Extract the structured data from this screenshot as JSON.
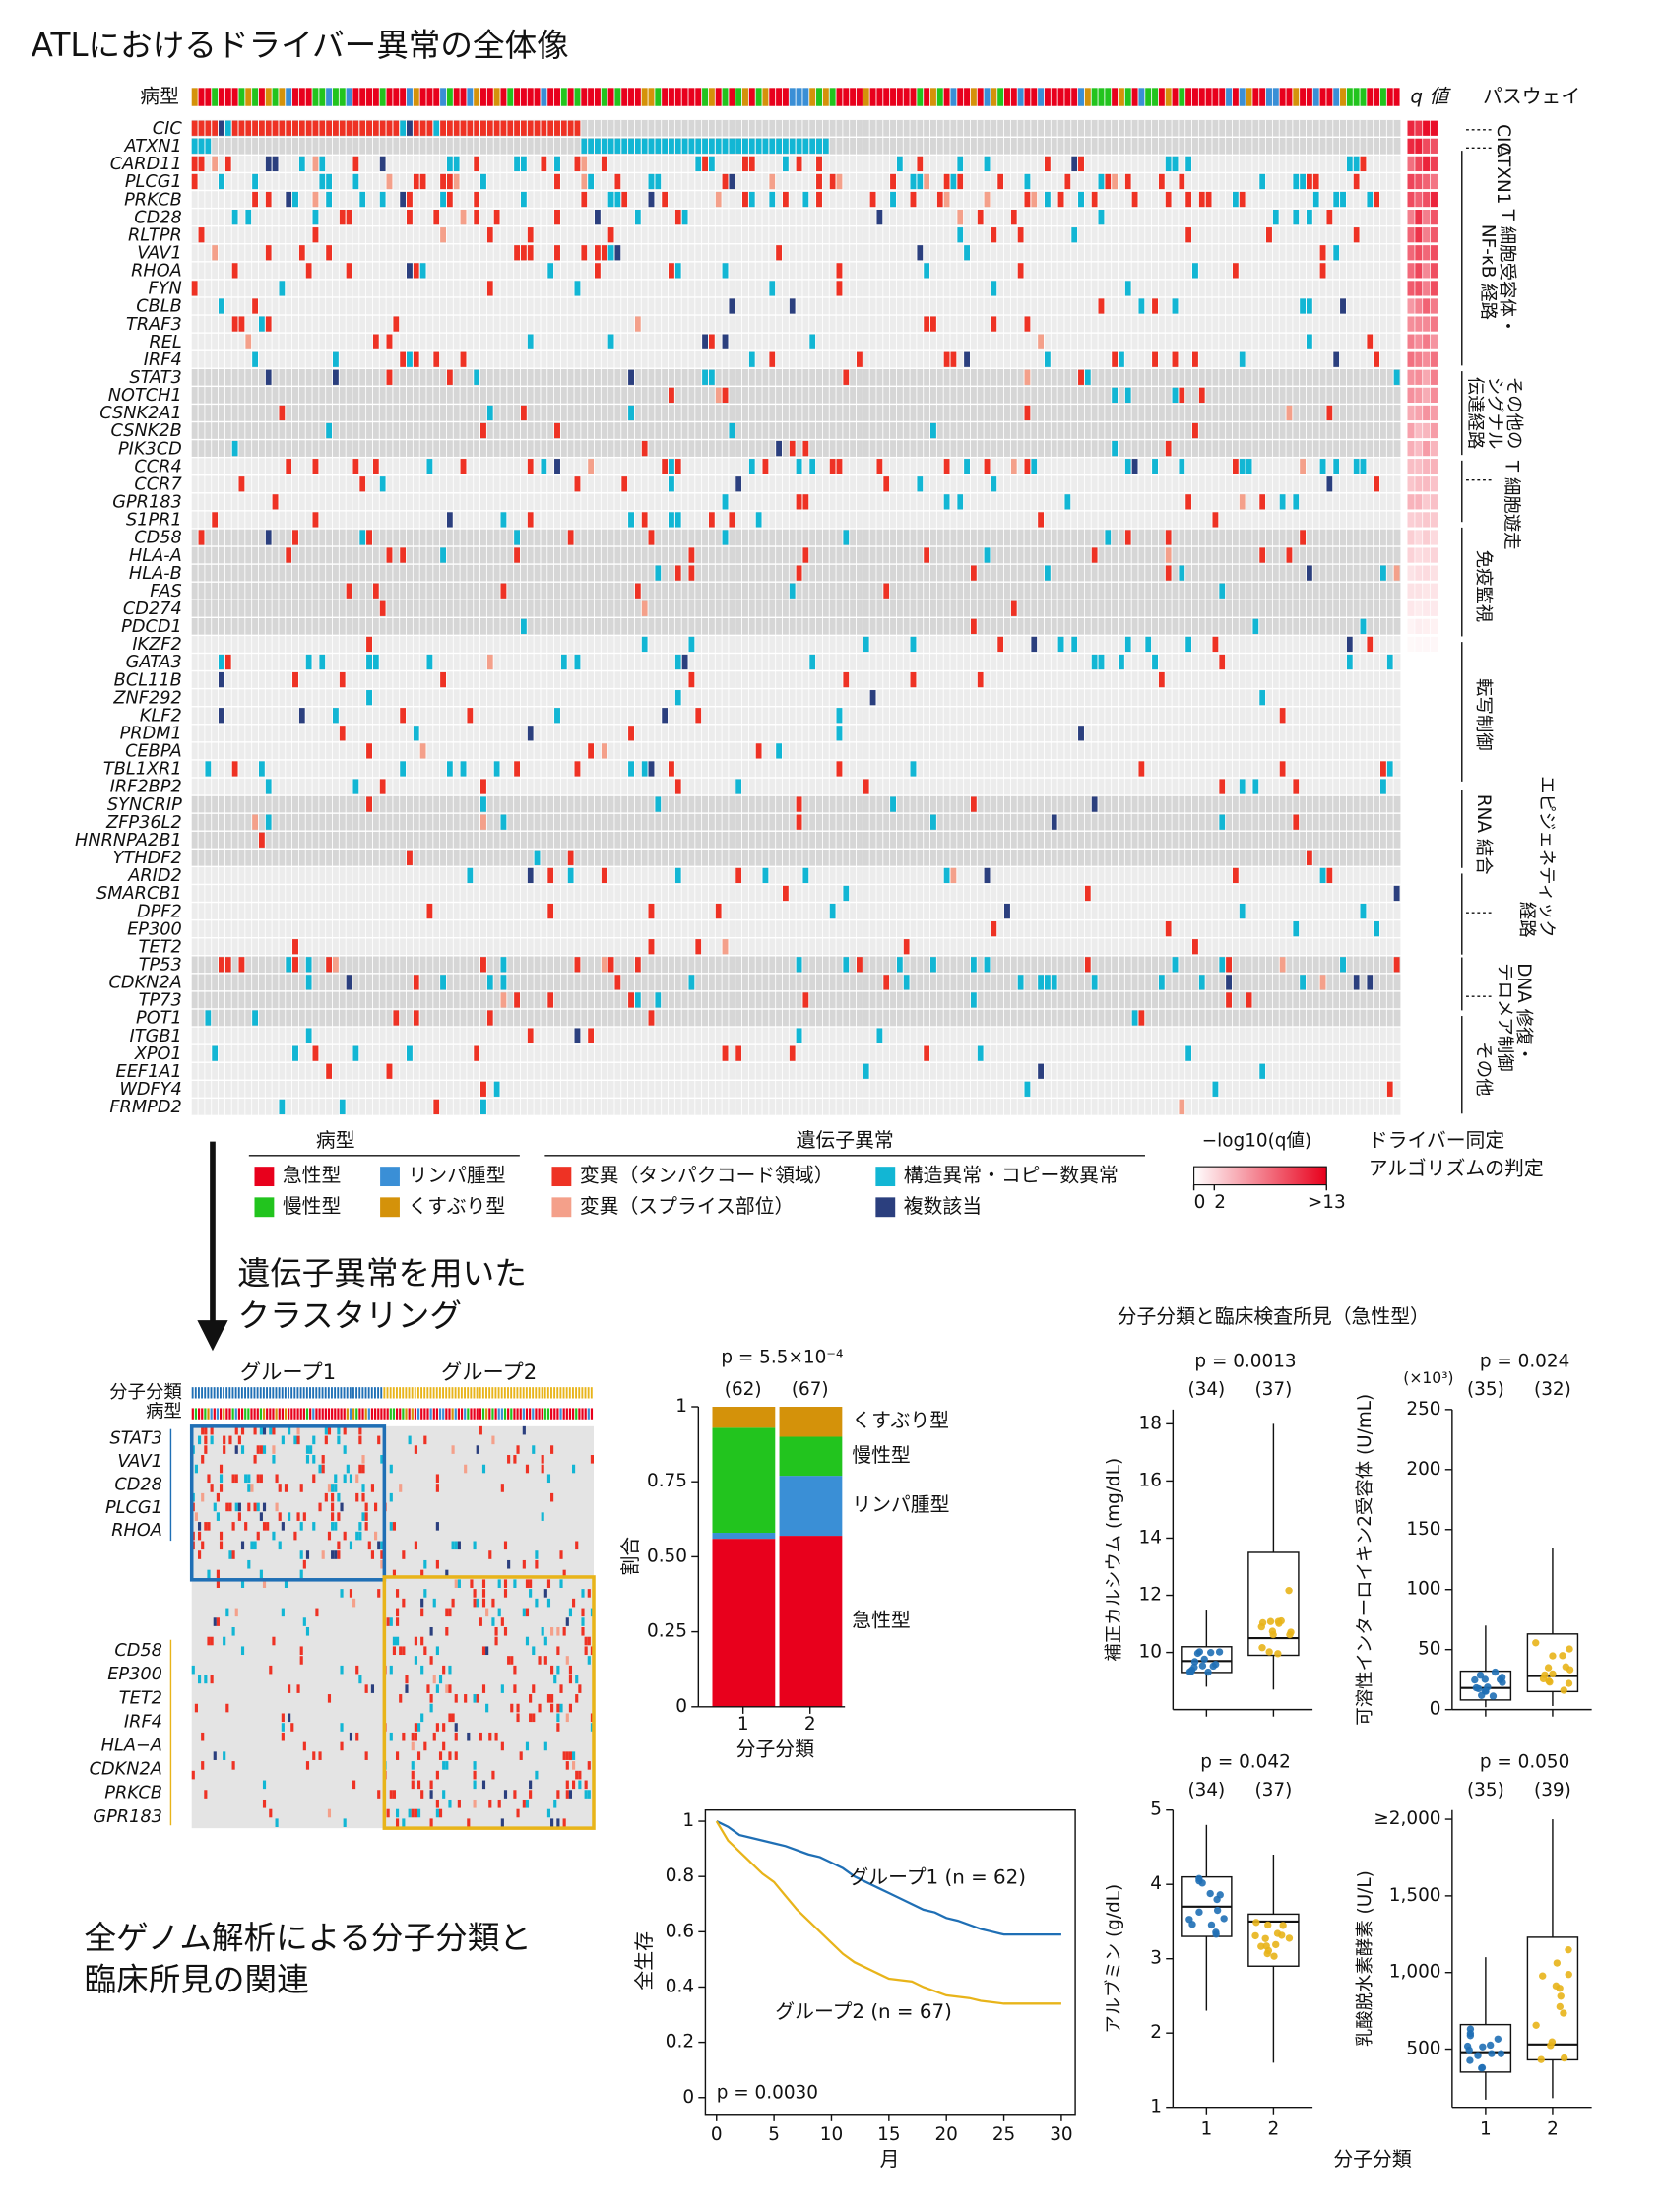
{
  "title": "ATLにおけるドライバー異常の全体像",
  "oncoprint": {
    "subtype_label": "病型",
    "q_label": "q 値",
    "pathway_label": "パスウェイ",
    "genes": [
      {
        "name": "CIC",
        "color": "#d4202a"
      },
      {
        "name": "ATXN1",
        "color": "#111111"
      },
      {
        "name": "CARD11",
        "color": "#111111"
      },
      {
        "name": "PLCG1",
        "color": "#111111"
      },
      {
        "name": "PRKCB",
        "color": "#111111"
      },
      {
        "name": "CD28",
        "color": "#111111"
      },
      {
        "name": "RLTPR",
        "color": "#111111"
      },
      {
        "name": "VAV1",
        "color": "#111111"
      },
      {
        "name": "RHOA",
        "color": "#111111"
      },
      {
        "name": "FYN",
        "color": "#111111"
      },
      {
        "name": "CBLB",
        "color": "#111111"
      },
      {
        "name": "TRAF3",
        "color": "#111111"
      },
      {
        "name": "REL",
        "color": "#d4202a"
      },
      {
        "name": "IRF4",
        "color": "#111111"
      },
      {
        "name": "STAT3",
        "color": "#111111"
      },
      {
        "name": "NOTCH1",
        "color": "#111111"
      },
      {
        "name": "CSNK2A1",
        "color": "#111111"
      },
      {
        "name": "CSNK2B",
        "color": "#111111"
      },
      {
        "name": "PIK3CD",
        "color": "#111111"
      },
      {
        "name": "CCR4",
        "color": "#111111"
      },
      {
        "name": "CCR7",
        "color": "#111111"
      },
      {
        "name": "GPR183",
        "color": "#111111"
      },
      {
        "name": "S1PR1",
        "color": "#111111"
      },
      {
        "name": "CD58",
        "color": "#111111"
      },
      {
        "name": "HLA-A",
        "color": "#111111"
      },
      {
        "name": "HLA-B",
        "color": "#111111"
      },
      {
        "name": "FAS",
        "color": "#111111"
      },
      {
        "name": "CD274",
        "color": "#111111"
      },
      {
        "name": "PDCD1",
        "color": "#111111"
      },
      {
        "name": "IKZF2",
        "color": "#111111"
      },
      {
        "name": "GATA3",
        "color": "#111111"
      },
      {
        "name": "BCL11B",
        "color": "#111111"
      },
      {
        "name": "ZNF292",
        "color": "#d4202a"
      },
      {
        "name": "KLF2",
        "color": "#d4202a"
      },
      {
        "name": "PRDM1",
        "color": "#111111"
      },
      {
        "name": "CEBPA",
        "color": "#111111"
      },
      {
        "name": "TBL1XR1",
        "color": "#111111"
      },
      {
        "name": "IRF2BP2",
        "color": "#111111"
      },
      {
        "name": "SYNCRIP",
        "color": "#111111"
      },
      {
        "name": "ZFP36L2",
        "color": "#111111"
      },
      {
        "name": "HNRNPA2B1",
        "color": "#111111"
      },
      {
        "name": "YTHDF2",
        "color": "#111111"
      },
      {
        "name": "ARID2",
        "color": "#111111"
      },
      {
        "name": "SMARCB1",
        "color": "#d4202a"
      },
      {
        "name": "DPF2",
        "color": "#d4202a"
      },
      {
        "name": "EP300",
        "color": "#111111"
      },
      {
        "name": "TET2",
        "color": "#111111"
      },
      {
        "name": "TP53",
        "color": "#111111"
      },
      {
        "name": "CDKN2A",
        "color": "#111111"
      },
      {
        "name": "TP73",
        "color": "#111111"
      },
      {
        "name": "POT1",
        "color": "#111111"
      },
      {
        "name": "ITGB1",
        "color": "#d4202a"
      },
      {
        "name": "XPO1",
        "color": "#d4202a"
      },
      {
        "name": "EEF1A1",
        "color": "#d4202a"
      },
      {
        "name": "WDFY4",
        "color": "#d4202a"
      },
      {
        "name": "FRMPD2",
        "color": "#d4202a"
      }
    ],
    "pathways": [
      [
        "CIC"
      ],
      [
        "ATXN1"
      ],
      [
        "T 細胞受容体・",
        "NF-κB 経路"
      ],
      [
        "その他の",
        "シグナル",
        "伝達経路"
      ],
      [
        "T 細胞遊走"
      ],
      [
        "免疫監視"
      ],
      [
        "転写制御"
      ],
      [
        "エピジェネティック",
        "経路"
      ],
      [
        "RNA 結合"
      ],
      [
        "DNA 修復・",
        "テロメア制御"
      ],
      [
        "その他"
      ]
    ]
  },
  "legend": {
    "subtype_title": "病型",
    "subtypes": [
      {
        "name": "急性型",
        "color": "#e8001c"
      },
      {
        "name": "リンパ腫型",
        "color": "#3a8fd6"
      },
      {
        "name": "慢性型",
        "color": "#22c41e"
      },
      {
        "name": "くすぶり型",
        "color": "#d4920a"
      }
    ],
    "alteration_title": "遺伝子異常",
    "alterations": [
      {
        "name": "変異（タンパクコード領域）",
        "color": "#ee3224"
      },
      {
        "name": "構造異常・コピー数異常",
        "color": "#12b6d4"
      },
      {
        "name": "変異（スプライス部位）",
        "color": "#f4a08a"
      },
      {
        "name": "複数該当",
        "color": "#2b3f7e"
      }
    ],
    "q_title": "−log10(q値)",
    "q_ticks": [
      0,
      2,
      {
        "value": 13,
        "label": ">13"
      }
    ],
    "q_lim": [
      0,
      13
    ],
    "algorithm_note": [
      "ドライバー同定",
      "アルゴリズムの判定"
    ]
  },
  "clustering": {
    "arrow_text": [
      "遺伝子異常を用いた",
      "クラスタリング"
    ],
    "row_labels": [
      "分子分類",
      "病型"
    ],
    "group1": {
      "name": "グループ1",
      "color": "#1f6fb5",
      "genes": [
        "STAT3",
        "VAV1",
        "CD28",
        "PLCG1",
        "RHOA"
      ]
    },
    "group2": {
      "name": "グループ2",
      "color": "#e8b41a",
      "genes": [
        "CD58",
        "EP300",
        "TET2",
        "IRF4",
        "HLA−A",
        "CDKN2A",
        "PRKCB",
        "GPR183"
      ]
    }
  },
  "section_label": [
    "全ゲノム解析による分子分類と",
    "臨床所見の関連"
  ],
  "clinical_heading": "分子分類と臨床検査所見（急性型）",
  "clinical_xlabel": "分子分類",
  "chart_data": [
    {
      "type": "stacked_bar",
      "p_label": "p = 5.5×10⁻⁴",
      "n_labels": [
        "(62)",
        "(67)"
      ],
      "ylabel": "割合",
      "xlabel": "分子分類",
      "categories": [
        "1",
        "2"
      ],
      "ylim": [
        0,
        1
      ],
      "yticks": [
        0,
        0.25,
        {
          "value": 0.5,
          "label": "0.50"
        },
        0.75,
        1
      ],
      "series": [
        {
          "name": "急性型",
          "color": "#e8001c",
          "values": [
            0.56,
            0.57
          ]
        },
        {
          "name": "リンパ腫型",
          "color": "#3a8fd6",
          "values": [
            0.02,
            0.2
          ]
        },
        {
          "name": "慢性型",
          "color": "#22c41e",
          "values": [
            0.35,
            0.13
          ]
        },
        {
          "name": "くすぶり型",
          "color": "#d4920a",
          "values": [
            0.07,
            0.1
          ]
        }
      ]
    },
    {
      "type": "line",
      "xlabel": "月",
      "ylabel": "全生存",
      "p_label": "p = 0.0030",
      "xlim": [
        0,
        30
      ],
      "xticks": [
        0,
        5,
        10,
        15,
        20,
        25,
        30
      ],
      "ylim": [
        0,
        1
      ],
      "yticks": [
        0,
        0.2,
        0.4,
        0.6,
        0.8,
        1
      ],
      "series": [
        {
          "name": "グループ1 (n = 62)",
          "color": "#1f6fb5",
          "x": [
            0,
            1,
            2,
            3,
            5,
            6,
            8,
            9,
            10,
            11,
            12,
            13,
            14,
            15,
            16,
            18,
            19,
            20,
            21,
            23,
            24,
            25,
            27,
            30
          ],
          "values": [
            1,
            0.98,
            0.95,
            0.94,
            0.92,
            0.91,
            0.88,
            0.87,
            0.85,
            0.83,
            0.8,
            0.78,
            0.76,
            0.74,
            0.72,
            0.68,
            0.67,
            0.65,
            0.64,
            0.61,
            0.6,
            0.59,
            0.59,
            0.59
          ]
        },
        {
          "name": "グループ2 (n = 67)",
          "color": "#e8b41a",
          "x": [
            0,
            1,
            2,
            3,
            4,
            5,
            6,
            7,
            8,
            9,
            10,
            11,
            12,
            13,
            14,
            15,
            17,
            18,
            20,
            22,
            23,
            25,
            30
          ],
          "values": [
            1,
            0.93,
            0.89,
            0.85,
            0.81,
            0.78,
            0.73,
            0.68,
            0.64,
            0.6,
            0.56,
            0.52,
            0.49,
            0.47,
            0.45,
            0.43,
            0.42,
            0.4,
            0.37,
            0.36,
            0.35,
            0.34,
            0.34
          ]
        }
      ]
    },
    {
      "type": "box",
      "ylabel": "補正カルシウム (mg/dL)",
      "p_label": "p = 0.0013",
      "n_labels": [
        "(34)",
        "(37)"
      ],
      "ylim": [
        8,
        18.5
      ],
      "yticks": [
        10,
        12,
        14,
        16,
        18
      ],
      "colors": [
        "#1f6fb5",
        "#e8b41a"
      ],
      "stats": [
        {
          "whislo": 8.8,
          "q1": 9.3,
          "med": 9.7,
          "q3": 10.2,
          "whishi": 11.5
        },
        {
          "whislo": 8.7,
          "q1": 9.9,
          "med": 10.5,
          "q3": 13.5,
          "whishi": 18
        }
      ]
    },
    {
      "type": "box",
      "ylabel": "可溶性インターロイキン2受容体 (U/mL)",
      "yunit": "(×10³)",
      "p_label": "p = 0.024",
      "n_labels": [
        "(35)",
        "(32)"
      ],
      "ylim": [
        0,
        250
      ],
      "yticks": [
        0,
        50,
        100,
        150,
        200,
        250
      ],
      "colors": [
        "#1f6fb5",
        "#e8b41a"
      ],
      "stats": [
        {
          "whislo": 2,
          "q1": 8,
          "med": 18,
          "q3": 32,
          "whishi": 70
        },
        {
          "whislo": 3,
          "q1": 15,
          "med": 28,
          "q3": 63,
          "whishi": 135
        }
      ]
    },
    {
      "type": "box",
      "ylabel": "アルブミン (g/dL)",
      "p_label": "p = 0.042",
      "n_labels": [
        "(34)",
        "(37)"
      ],
      "categories": [
        "1",
        "2"
      ],
      "ylim": [
        1,
        5
      ],
      "yticks": [
        1,
        2,
        3,
        4,
        5
      ],
      "colors": [
        "#1f6fb5",
        "#e8b41a"
      ],
      "stats": [
        {
          "whislo": 2.3,
          "q1": 3.3,
          "med": 3.7,
          "q3": 4.1,
          "whishi": 4.8
        },
        {
          "whislo": 1.6,
          "q1": 2.9,
          "med": 3.5,
          "q3": 3.6,
          "whishi": 4.4
        }
      ]
    },
    {
      "type": "box",
      "ylabel": "乳酸脱水素酵素 (U/L)",
      "p_label": "p = 0.050",
      "n_labels": [
        "(35)",
        "(39)"
      ],
      "categories": [
        "1",
        "2"
      ],
      "ylim": [
        120,
        2060
      ],
      "yticks": [
        500,
        {
          "value": 1000,
          "label": "1,000"
        },
        {
          "value": 1500,
          "label": "1,500"
        },
        {
          "value": 2000,
          "label": "≥2,000"
        }
      ],
      "colors": [
        "#1f6fb5",
        "#e8b41a"
      ],
      "stats": [
        {
          "whislo": 170,
          "q1": 350,
          "med": 480,
          "q3": 660,
          "whishi": 1100
        },
        {
          "whislo": 180,
          "q1": 430,
          "med": 530,
          "q3": 1230,
          "whishi": 2000
        }
      ]
    }
  ]
}
